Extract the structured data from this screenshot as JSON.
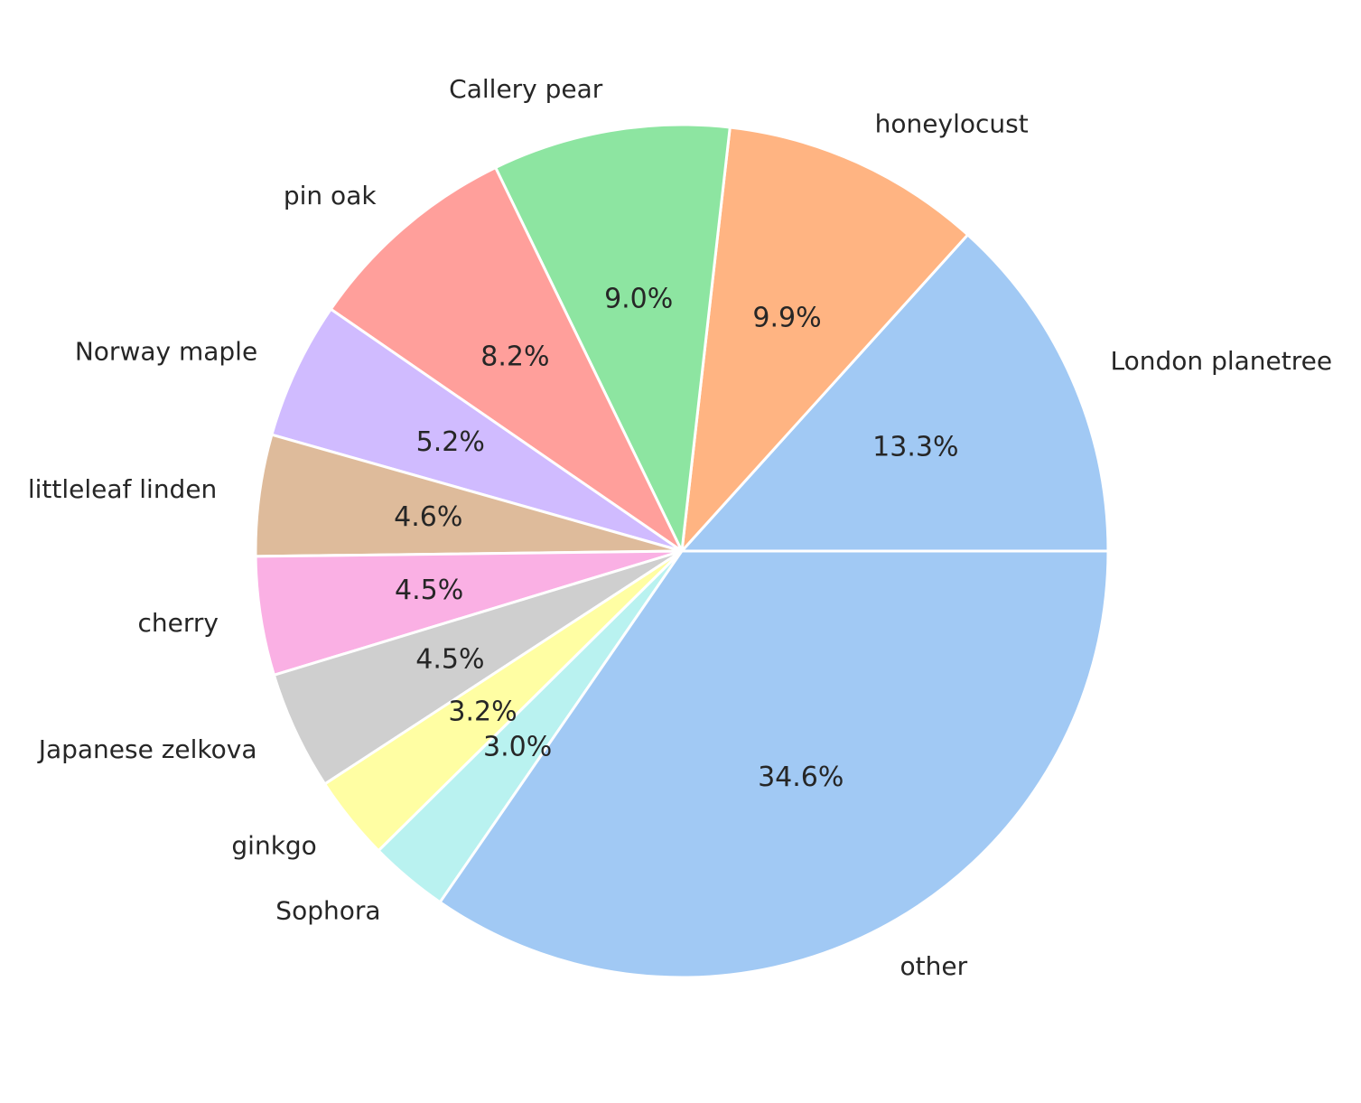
{
  "chart_data": {
    "type": "pie",
    "title": "",
    "start_angle_deg": 0,
    "direction": "counterclockwise",
    "slices": [
      {
        "label": "London planetree",
        "value": 13.3,
        "pct_label": "13.3%",
        "color": "#a1c9f4"
      },
      {
        "label": "honeylocust",
        "value": 9.9,
        "pct_label": "9.9%",
        "color": "#ffb482"
      },
      {
        "label": "Callery pear",
        "value": 9.0,
        "pct_label": "9.0%",
        "color": "#8de5a1"
      },
      {
        "label": "pin oak",
        "value": 8.2,
        "pct_label": "8.2%",
        "color": "#ff9f9b"
      },
      {
        "label": "Norway maple",
        "value": 5.2,
        "pct_label": "5.2%",
        "color": "#d0bbff"
      },
      {
        "label": "littleleaf linden",
        "value": 4.6,
        "pct_label": "4.6%",
        "color": "#debb9b"
      },
      {
        "label": "cherry",
        "value": 4.5,
        "pct_label": "4.5%",
        "color": "#fab0e4"
      },
      {
        "label": "Japanese zelkova",
        "value": 4.5,
        "pct_label": "4.5%",
        "color": "#cfcfcf"
      },
      {
        "label": "ginkgo",
        "value": 3.2,
        "pct_label": "3.2%",
        "color": "#fffea3"
      },
      {
        "label": "Sophora",
        "value": 3.0,
        "pct_label": "3.0%",
        "color": "#b9f2f0"
      },
      {
        "label": "other",
        "value": 34.6,
        "pct_label": "34.6%",
        "color": "#a1c9f4"
      }
    ]
  }
}
